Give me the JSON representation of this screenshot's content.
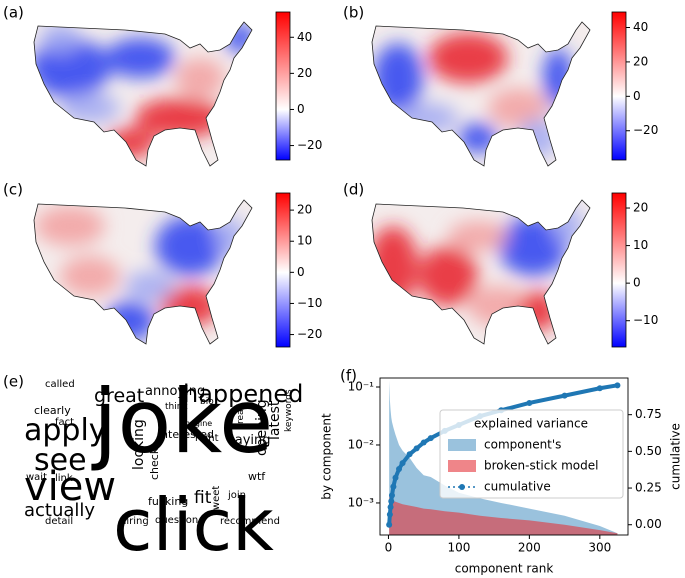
{
  "maps": [
    {
      "label": "(a)",
      "colorbar": {
        "lim": [
          -28,
          54
        ],
        "ticks": [
          {
            "value": -20,
            "label": "−20"
          },
          0,
          20,
          40
        ]
      }
    },
    {
      "label": "(b)",
      "colorbar": {
        "lim": [
          -37,
          49
        ],
        "ticks": [
          {
            "value": -20,
            "label": "−20"
          },
          0,
          20,
          40
        ]
      }
    },
    {
      "label": "(c)",
      "colorbar": {
        "lim": [
          -24,
          25.5
        ],
        "ticks": [
          {
            "value": -20,
            "label": "−20"
          },
          {
            "value": -10,
            "label": "−10"
          },
          0,
          10,
          20
        ]
      }
    },
    {
      "label": "(d)",
      "colorbar": {
        "lim": [
          -17,
          24
        ],
        "ticks": [
          {
            "value": -10,
            "label": "−10"
          },
          0,
          10,
          20
        ]
      }
    }
  ],
  "wordcloud": {
    "label": "(e)",
    "words": [
      "joke",
      "click",
      "view",
      "apply",
      "happened",
      "see",
      "great",
      "actually",
      "annoying",
      "saying",
      "fit",
      "fucking",
      "interested",
      "clearly",
      "called",
      "think",
      "bio",
      "wtf",
      "join",
      "recommend",
      "question",
      "detail",
      "hiring",
      "wait",
      "link",
      "fact",
      "right",
      "opening",
      "latest",
      "looking",
      "check",
      "tweet",
      "keywords",
      "read",
      "imagine"
    ]
  },
  "chart_data": {
    "type": "area",
    "label": "(f)",
    "xlabel": "component rank",
    "ylabel": "by component",
    "y2label": "cumulative",
    "legend_title": "explained variance",
    "legend": "upper right",
    "log_y": true,
    "x": [
      1,
      2,
      3,
      4,
      5,
      7,
      10,
      15,
      20,
      30,
      40,
      50,
      60,
      80,
      100,
      130,
      160,
      200,
      250,
      300,
      325
    ],
    "series": [
      {
        "name": "component's",
        "type": "area",
        "color": "#1f77b4",
        "opacity": 0.45,
        "values": [
          0.13,
          0.06,
          0.04,
          0.03,
          0.025,
          0.02,
          0.015,
          0.01,
          0.008,
          0.006,
          0.004,
          0.003,
          0.0028,
          0.002,
          0.0015,
          0.0012,
          0.001,
          0.0008,
          0.0006,
          0.0004,
          0.0003
        ]
      },
      {
        "name": "broken-stick model",
        "type": "area",
        "color": "#e5333a",
        "opacity": 0.6,
        "values": [
          0.0013,
          0.0012,
          0.00118,
          0.00115,
          0.0011,
          0.00108,
          0.00105,
          0.001,
          0.00095,
          0.0009,
          0.00085,
          0.0008,
          0.00078,
          0.00072,
          0.00068,
          0.0006,
          0.00055,
          0.0005,
          0.00042,
          0.00034,
          0.0003
        ]
      },
      {
        "name": "cumulative",
        "type": "line",
        "axis": "y2",
        "color": "#1f77b4",
        "values": [
          0.0,
          0.07,
          0.12,
          0.16,
          0.2,
          0.26,
          0.32,
          0.38,
          0.42,
          0.48,
          0.52,
          0.56,
          0.59,
          0.64,
          0.68,
          0.74,
          0.78,
          0.83,
          0.88,
          0.93,
          0.95
        ]
      }
    ],
    "xlim": [
      -12,
      340
    ],
    "xticks": [
      0,
      100,
      200,
      300
    ],
    "ylim": [
      0.00028,
      0.143
    ],
    "yticks": [
      {
        "value": 0.001,
        "label": "10⁻³"
      },
      {
        "value": 0.01,
        "label": "10⁻²"
      },
      {
        "value": 0.1,
        "label": "10⁻¹"
      }
    ],
    "y2lim": [
      -0.07,
      1.0
    ],
    "y2ticks": [
      {
        "value": 0,
        "label": "0.00"
      },
      {
        "value": 0.25,
        "label": "0.25"
      },
      {
        "value": 0.5,
        "label": "0.50"
      },
      {
        "value": 0.75,
        "label": "0.75"
      }
    ]
  }
}
